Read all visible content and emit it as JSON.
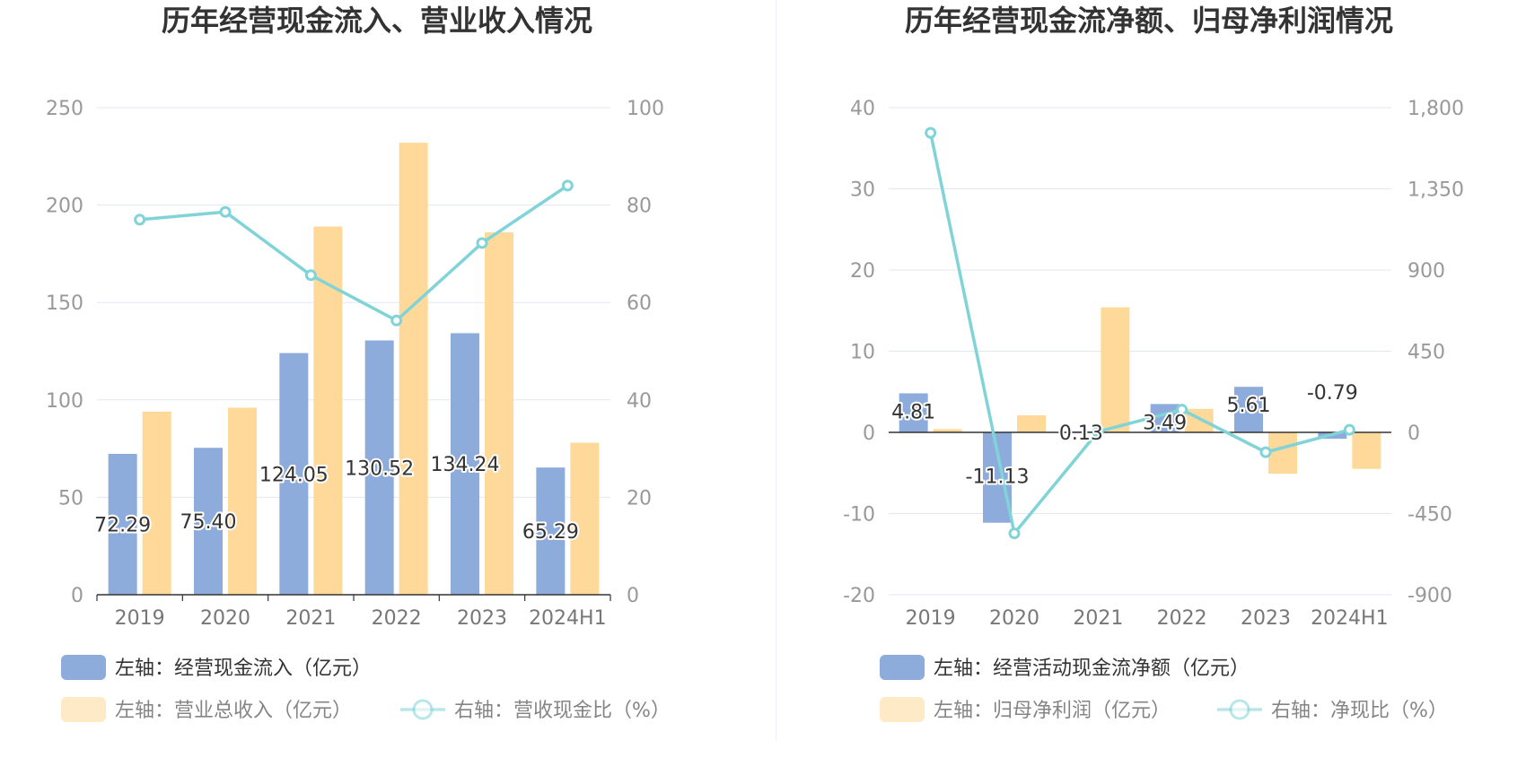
{
  "chart_data": [
    {
      "type": "bar",
      "title": "历年经营现金流入、营业收入情况",
      "categories": [
        "2019",
        "2020",
        "2021",
        "2022",
        "2023",
        "2024H1"
      ],
      "left_axis": {
        "ticks": [
          "250",
          "200",
          "150",
          "100",
          "50",
          "0"
        ],
        "ylim": [
          0,
          250
        ]
      },
      "right_axis": {
        "ticks": [
          "100",
          "80",
          "60",
          "40",
          "20",
          "0"
        ],
        "ylim": [
          0,
          100
        ]
      },
      "series": [
        {
          "name": "左轴：经营现金流入（亿元）",
          "type": "bar",
          "axis": "left",
          "color": "#8eacdb",
          "values": [
            72.29,
            75.4,
            124.05,
            130.52,
            134.24,
            65.29
          ],
          "labels": [
            "72.29",
            "75.40",
            "124.05",
            "130.52",
            "134.24",
            "65.29"
          ]
        },
        {
          "name": "左轴：营业总收入（亿元）",
          "type": "bar",
          "axis": "left",
          "color": "#ffd999",
          "values": [
            94.0,
            96.0,
            189.0,
            232.0,
            186.0,
            78.0
          ]
        },
        {
          "name": "右轴：营收现金比（%）",
          "type": "line",
          "axis": "right",
          "color": "#80d4d8",
          "values": [
            77.0,
            78.6,
            65.6,
            56.3,
            72.2,
            84.0
          ]
        }
      ]
    },
    {
      "type": "bar",
      "title": "历年经营现金流净额、归母净利润情况",
      "categories": [
        "2019",
        "2020",
        "2021",
        "2022",
        "2023",
        "2024H1"
      ],
      "left_axis": {
        "ticks": [
          "40",
          "30",
          "20",
          "10",
          "0",
          "-10",
          "-20"
        ],
        "ylim": [
          -20,
          40
        ]
      },
      "right_axis": {
        "ticks": [
          "1,800",
          "1,350",
          "900",
          "450",
          "0",
          "-450",
          "-900"
        ],
        "ylim": [
          -900,
          1800
        ]
      },
      "series": [
        {
          "name": "左轴：经营活动现金流净额（亿元）",
          "type": "bar",
          "axis": "left",
          "color": "#8eacdb",
          "values": [
            4.81,
            -11.13,
            0.13,
            3.49,
            5.61,
            -0.79
          ],
          "labels": [
            "4.81",
            "-11.13",
            "0.13",
            "3.49",
            "5.61",
            "-0.79"
          ]
        },
        {
          "name": "左轴：归母净利润（亿元）",
          "type": "bar",
          "axis": "left",
          "color": "#ffd999",
          "values": [
            0.4,
            2.1,
            15.4,
            2.9,
            -5.1,
            -4.5
          ]
        },
        {
          "name": "右轴：净现比（%）",
          "type": "line",
          "axis": "right",
          "color": "#80d4d8",
          "values": [
            1660,
            -560,
            4,
            126,
            -110,
            14
          ]
        }
      ]
    }
  ]
}
